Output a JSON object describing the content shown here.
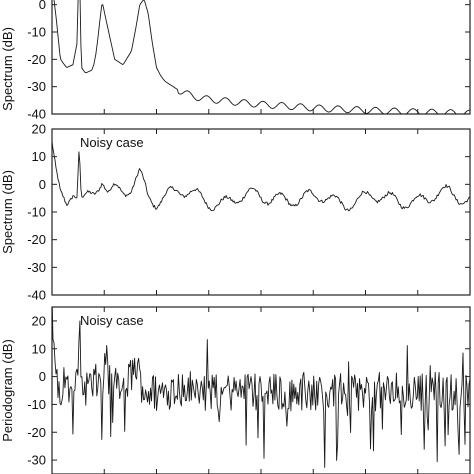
{
  "chart_data": [
    {
      "type": "line",
      "ylabel": "Spectrum (dB)",
      "annotation": "",
      "ylim": [
        -40,
        20
      ],
      "yticks": [
        0,
        -10,
        -20,
        -30,
        -40
      ],
      "grid": false,
      "x": [
        0.0,
        0.01,
        0.02,
        0.035,
        0.05,
        0.06,
        0.065,
        0.07,
        0.075,
        0.08,
        0.095,
        0.1,
        0.105,
        0.11,
        0.115,
        0.12,
        0.13,
        0.15,
        0.17,
        0.19,
        0.2,
        0.21,
        0.22,
        0.23,
        0.24,
        0.25,
        0.26,
        0.27,
        0.28,
        0.29,
        0.3,
        0.31,
        0.33,
        0.35,
        0.37,
        0.4,
        0.45,
        0.5,
        0.55,
        0.6,
        0.65,
        0.7,
        0.75,
        0.8,
        0.85,
        0.9,
        0.95,
        1.0
      ],
      "values": [
        8,
        -5,
        -20,
        -23,
        -22,
        -14,
        20,
        -23,
        -24,
        -25,
        -24,
        -22,
        -18,
        -12,
        -5,
        1,
        -6,
        -20,
        -22,
        -17,
        -9,
        0,
        2,
        -3,
        -14,
        -23,
        -26,
        -28,
        -29,
        -30,
        -31,
        -32,
        -33,
        -34,
        -34.5,
        -35,
        -35.8,
        -36.5,
        -37,
        -37.5,
        -38,
        -38.3,
        -38.6,
        -38.9,
        -39.2,
        -39.4,
        -39.6,
        -39.8
      ]
    },
    {
      "type": "line",
      "ylabel": "Spectrum (dB)",
      "annotation": "Noisy case",
      "ylim": [
        -40,
        20
      ],
      "yticks": [
        20,
        10,
        0,
        -10,
        -20,
        -30,
        -40
      ],
      "grid": false,
      "x": [
        0.0,
        0.01,
        0.02,
        0.035,
        0.05,
        0.06,
        0.065,
        0.07,
        0.08,
        0.1,
        0.12,
        0.135,
        0.15,
        0.17,
        0.19,
        0.21,
        0.23,
        0.25,
        0.27,
        0.3,
        0.35,
        0.4,
        0.45,
        0.5,
        0.55,
        0.6,
        0.65,
        0.7,
        0.75,
        0.8,
        0.85,
        0.9,
        0.95,
        1.0
      ],
      "values": [
        14,
        2,
        -6,
        -8,
        -2,
        -3,
        15,
        -5,
        -4,
        -2,
        3,
        -4,
        -3,
        -4,
        -2,
        4,
        -3,
        -5,
        -4,
        -3,
        -5,
        -6,
        -5,
        -5,
        -4,
        -6,
        -5,
        -6,
        -5,
        -6,
        -5,
        -5,
        -4,
        -5
      ]
    },
    {
      "type": "line",
      "ylabel": "Periodogram (dB)",
      "annotation": "Noisy case",
      "ylim": [
        -35,
        25
      ],
      "yticks": [
        20,
        10,
        0,
        -10,
        -20,
        -30
      ],
      "grid": false,
      "x": [
        0.0,
        0.01,
        0.015,
        0.03,
        0.05,
        0.06,
        0.065,
        0.07,
        0.1,
        0.13,
        0.16,
        0.18,
        0.2,
        0.22,
        0.25,
        0.3,
        0.35,
        0.4,
        0.45,
        0.5,
        0.55,
        0.6,
        0.65,
        0.7,
        0.75,
        0.8,
        0.85,
        0.9,
        0.95,
        1.0
      ],
      "values": [
        24,
        0,
        -5,
        -3,
        -4,
        -2,
        22,
        -4,
        -3,
        0,
        -5,
        -2,
        4,
        -5,
        -6,
        -4,
        -5,
        -6,
        -5,
        -5,
        -6,
        -5,
        -6,
        -5,
        -6,
        -5,
        -6,
        -5,
        -5,
        -6
      ]
    }
  ]
}
